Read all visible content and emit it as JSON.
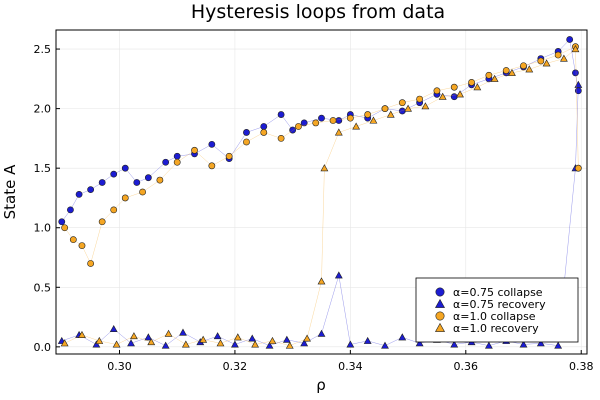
{
  "chart_data": {
    "type": "scatter",
    "title": "Hysteresis loops from data",
    "xlabel": "ρ",
    "ylabel": "State A",
    "xlim": [
      0.289,
      0.381
    ],
    "ylim": [
      -0.06,
      2.66
    ],
    "xticks": [
      0.3,
      0.32,
      0.34,
      0.36,
      0.38
    ],
    "xtick_labels": [
      "0.30",
      "0.32",
      "0.34",
      "0.36",
      "0.38"
    ],
    "yticks": [
      0.0,
      0.5,
      1.0,
      1.5,
      2.0,
      2.5
    ],
    "ytick_labels": [
      "0.0",
      "0.5",
      "1.0",
      "1.5",
      "2.0",
      "2.5"
    ],
    "grid": true,
    "legend_position": "bottom-right",
    "series": [
      {
        "name": "α=0.75 collapse",
        "marker": "circle",
        "color": "#1c1cd2",
        "collapse_rho": 0.2895,
        "points": [
          [
            0.29,
            1.05
          ],
          [
            0.2915,
            1.15
          ],
          [
            0.293,
            1.28
          ],
          [
            0.295,
            1.32
          ],
          [
            0.297,
            1.38
          ],
          [
            0.299,
            1.45
          ],
          [
            0.301,
            1.5
          ],
          [
            0.303,
            1.38
          ],
          [
            0.305,
            1.42
          ],
          [
            0.308,
            1.55
          ],
          [
            0.31,
            1.6
          ],
          [
            0.313,
            1.62
          ],
          [
            0.316,
            1.7
          ],
          [
            0.319,
            1.58
          ],
          [
            0.322,
            1.8
          ],
          [
            0.325,
            1.85
          ],
          [
            0.328,
            1.95
          ],
          [
            0.33,
            1.82
          ],
          [
            0.332,
            1.88
          ],
          [
            0.335,
            1.92
          ],
          [
            0.338,
            1.9
          ],
          [
            0.34,
            1.95
          ],
          [
            0.343,
            1.92
          ],
          [
            0.346,
            2.0
          ],
          [
            0.349,
            1.98
          ],
          [
            0.352,
            2.05
          ],
          [
            0.355,
            2.12
          ],
          [
            0.358,
            2.1
          ],
          [
            0.361,
            2.2
          ],
          [
            0.364,
            2.25
          ],
          [
            0.367,
            2.3
          ],
          [
            0.37,
            2.35
          ],
          [
            0.373,
            2.42
          ],
          [
            0.376,
            2.48
          ],
          [
            0.378,
            2.58
          ],
          [
            0.379,
            2.3
          ],
          [
            0.3795,
            2.15
          ]
        ]
      },
      {
        "name": "α=0.75 recovery",
        "marker": "triangle",
        "color": "#1c1cd2",
        "recovery_rho": 0.3795,
        "points": [
          [
            0.29,
            0.05
          ],
          [
            0.293,
            0.1
          ],
          [
            0.296,
            0.02
          ],
          [
            0.299,
            0.15
          ],
          [
            0.302,
            0.03
          ],
          [
            0.305,
            0.08
          ],
          [
            0.308,
            0.01
          ],
          [
            0.311,
            0.12
          ],
          [
            0.314,
            0.04
          ],
          [
            0.317,
            0.09
          ],
          [
            0.32,
            0.02
          ],
          [
            0.323,
            0.07
          ],
          [
            0.326,
            0.01
          ],
          [
            0.329,
            0.06
          ],
          [
            0.332,
            0.03
          ],
          [
            0.335,
            0.11
          ],
          [
            0.338,
            0.6
          ],
          [
            0.34,
            0.02
          ],
          [
            0.343,
            0.05
          ],
          [
            0.346,
            0.01
          ],
          [
            0.349,
            0.08
          ],
          [
            0.352,
            0.03
          ],
          [
            0.355,
            0.06
          ],
          [
            0.358,
            0.02
          ],
          [
            0.361,
            0.04
          ],
          [
            0.364,
            0.01
          ],
          [
            0.367,
            0.05
          ],
          [
            0.37,
            0.02
          ],
          [
            0.373,
            0.03
          ],
          [
            0.376,
            0.01
          ],
          [
            0.379,
            1.5
          ],
          [
            0.3795,
            2.2
          ]
        ]
      },
      {
        "name": "α=1.0 collapse",
        "marker": "circle",
        "color": "#f5a623",
        "collapse_rho": 0.2905,
        "points": [
          [
            0.2905,
            1.0
          ],
          [
            0.292,
            0.9
          ],
          [
            0.2935,
            0.85
          ],
          [
            0.295,
            0.7
          ],
          [
            0.297,
            1.05
          ],
          [
            0.299,
            1.15
          ],
          [
            0.301,
            1.25
          ],
          [
            0.304,
            1.3
          ],
          [
            0.307,
            1.4
          ],
          [
            0.31,
            1.55
          ],
          [
            0.313,
            1.65
          ],
          [
            0.316,
            1.52
          ],
          [
            0.319,
            1.6
          ],
          [
            0.322,
            1.72
          ],
          [
            0.325,
            1.8
          ],
          [
            0.328,
            1.75
          ],
          [
            0.331,
            1.85
          ],
          [
            0.334,
            1.88
          ],
          [
            0.337,
            1.9
          ],
          [
            0.34,
            1.92
          ],
          [
            0.343,
            1.95
          ],
          [
            0.346,
            2.0
          ],
          [
            0.349,
            2.05
          ],
          [
            0.352,
            2.08
          ],
          [
            0.355,
            2.15
          ],
          [
            0.358,
            2.18
          ],
          [
            0.361,
            2.22
          ],
          [
            0.364,
            2.28
          ],
          [
            0.367,
            2.32
          ],
          [
            0.37,
            2.36
          ],
          [
            0.373,
            2.4
          ],
          [
            0.376,
            2.45
          ],
          [
            0.379,
            2.52
          ],
          [
            0.3795,
            1.5
          ]
        ]
      },
      {
        "name": "α=1.0 recovery",
        "marker": "triangle",
        "color": "#f5a623",
        "recovery_rho": 0.3355,
        "points": [
          [
            0.2905,
            0.03
          ],
          [
            0.2935,
            0.1
          ],
          [
            0.2965,
            0.05
          ],
          [
            0.2995,
            0.02
          ],
          [
            0.3025,
            0.09
          ],
          [
            0.3055,
            0.04
          ],
          [
            0.3085,
            0.11
          ],
          [
            0.3115,
            0.02
          ],
          [
            0.3145,
            0.06
          ],
          [
            0.3175,
            0.03
          ],
          [
            0.3205,
            0.08
          ],
          [
            0.3235,
            0.02
          ],
          [
            0.3265,
            0.05
          ],
          [
            0.3295,
            0.01
          ],
          [
            0.3325,
            0.07
          ],
          [
            0.335,
            0.55
          ],
          [
            0.3355,
            1.5
          ],
          [
            0.338,
            1.8
          ],
          [
            0.341,
            1.85
          ],
          [
            0.344,
            1.9
          ],
          [
            0.347,
            1.95
          ],
          [
            0.35,
            2.0
          ],
          [
            0.353,
            2.02
          ],
          [
            0.356,
            2.1
          ],
          [
            0.359,
            2.12
          ],
          [
            0.362,
            2.18
          ],
          [
            0.365,
            2.25
          ],
          [
            0.368,
            2.3
          ],
          [
            0.371,
            2.33
          ],
          [
            0.374,
            2.38
          ],
          [
            0.377,
            2.42
          ],
          [
            0.379,
            2.5
          ]
        ]
      }
    ]
  }
}
